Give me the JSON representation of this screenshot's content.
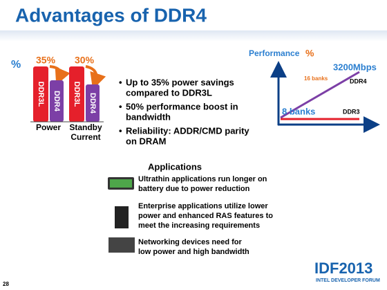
{
  "header": {
    "title": "Advantages of DDR4"
  },
  "power_chart": {
    "axis_label": "%",
    "savings": [
      "35%",
      "30%"
    ],
    "bars": [
      "DDR3L",
      "DDR4",
      "DDR3L",
      "DDR4"
    ],
    "groups": [
      [
        "Power"
      ],
      [
        "Standby",
        "Current"
      ]
    ]
  },
  "bullets": [
    [
      "Up to 35% power savings",
      "compared to DDR3L"
    ],
    [
      "50% performance boost in",
      "bandwidth"
    ],
    [
      "Reliability: ADDR/CMD parity",
      "on DRAM"
    ]
  ],
  "performance_chart": {
    "title": "Performance",
    "unit": "%",
    "ddr4_rate": "3200Mbps",
    "ddr4_banks": "16 banks",
    "ddr4_label": "DDR4",
    "ddr3_banks": "8 banks",
    "ddr3_label": "DDR3"
  },
  "applications": {
    "title": "Applications",
    "items": [
      [
        "Ultrathin applications run longer on",
        "battery due to power reduction"
      ],
      [
        "Enterprise applications utilize lower",
        "power and enhanced RAS features to",
        "meet the increasing requirements"
      ],
      [
        "Networking devices need for",
        "low power and high bandwidth"
      ]
    ]
  },
  "footer": {
    "logo": "IDF2013",
    "logo_sub": "INTEL DEVELOPER FORUM",
    "page": "28"
  }
}
